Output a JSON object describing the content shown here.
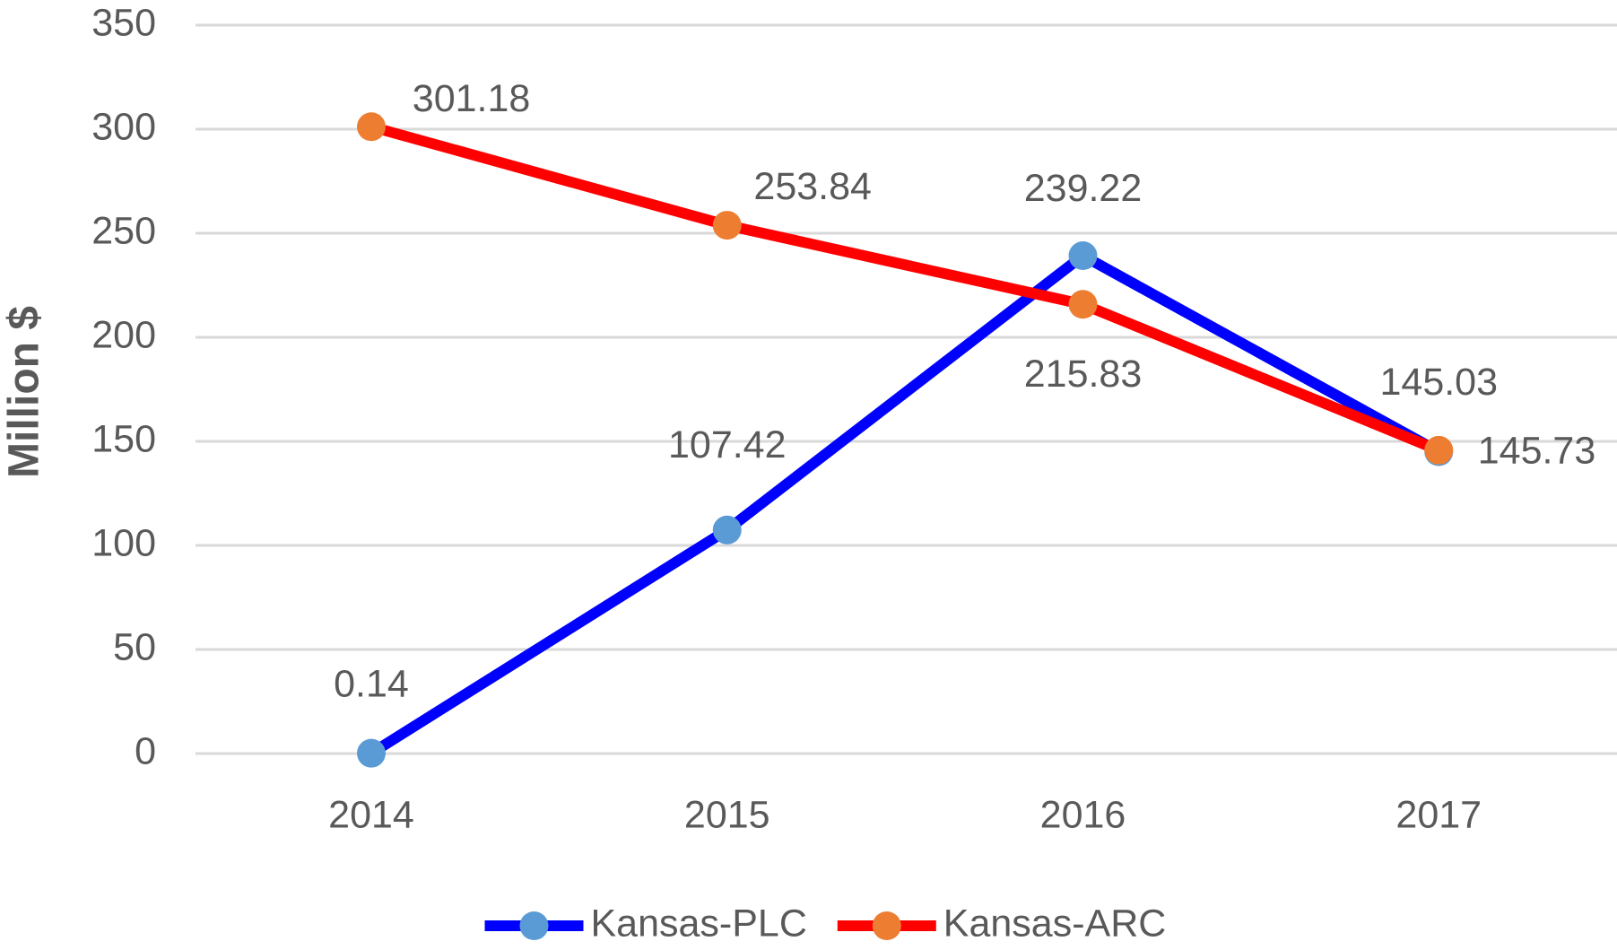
{
  "chart_data": {
    "type": "line",
    "y_label": "Million $",
    "categories": [
      "2014",
      "2015",
      "2016",
      "2017"
    ],
    "series": [
      {
        "name": "Kansas-PLC",
        "color": "#0000ff",
        "marker_color": "#5b9bd5",
        "values": [
          0.14,
          107.42,
          239.22,
          145.03
        ]
      },
      {
        "name": "Kansas-ARC",
        "color": "#ff0000",
        "marker_color": "#ed7d31",
        "values": [
          301.18,
          253.84,
          215.83,
          145.73
        ]
      }
    ],
    "ylim": [
      0,
      350
    ],
    "yticks": [
      0,
      50,
      100,
      150,
      200,
      250,
      300,
      350
    ],
    "grid": true,
    "legend": "bottom"
  }
}
